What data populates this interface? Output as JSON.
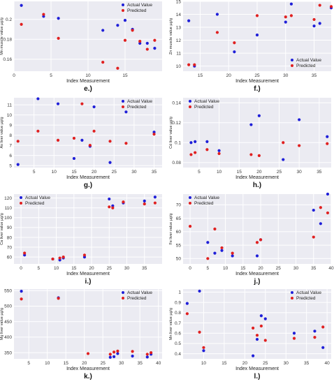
{
  "colors": {
    "actual": "#1f1fd8",
    "predicted": "#e02020",
    "plot_bg": "#ebebf2",
    "grid": "#ffffff"
  },
  "chart_data": [
    {
      "type": "scatter",
      "panel_label": "e.)",
      "xlabel": "Index Measurement",
      "ylabel": "Mn muscle value µg/g",
      "xlim": [
        0,
        20
      ],
      "ylim": [
        0.148,
        0.218
      ],
      "xticks": [
        0,
        5,
        10,
        15
      ],
      "yticks": [
        0.16,
        0.18,
        0.2
      ],
      "legend": "top-right",
      "series": [
        {
          "name": "Actual Value",
          "x": [
            1,
            4,
            6,
            12,
            14,
            15,
            16,
            17,
            18,
            19
          ],
          "y": [
            0.214,
            0.203,
            0.201,
            0.189,
            0.194,
            0.199,
            0.19,
            0.176,
            0.176,
            0.171
          ]
        },
        {
          "name": "Predicted",
          "x": [
            1,
            4,
            6,
            12,
            14,
            15,
            16,
            17,
            18,
            19
          ],
          "y": [
            0.195,
            0.205,
            0.181,
            0.157,
            0.151,
            0.179,
            0.189,
            0.178,
            0.17,
            0.179
          ]
        }
      ]
    },
    {
      "type": "scatter",
      "panel_label": "f.)",
      "xlabel": "Index Measurement",
      "ylabel": "Zn muscle value µg/g",
      "xlim": [
        12,
        38
      ],
      "ylim": [
        9.6,
        15
      ],
      "xticks": [
        15,
        20,
        25,
        30,
        35
      ],
      "yticks": [
        10,
        11,
        12,
        13,
        14,
        15
      ],
      "legend": "bottom-right",
      "series": [
        {
          "name": "Actual Value",
          "x": [
            13,
            14,
            18,
            21,
            25,
            30,
            31,
            35,
            36,
            38
          ],
          "y": [
            13.5,
            10.0,
            14.0,
            11.1,
            12.4,
            13.4,
            14.8,
            13.1,
            13.3,
            14.5
          ]
        },
        {
          "name": "Predicted",
          "x": [
            13,
            14,
            18,
            21,
            25,
            30,
            31,
            35,
            36,
            38
          ],
          "y": [
            10.1,
            10.1,
            12.6,
            11.8,
            13.9,
            13.8,
            13.9,
            13.6,
            14.7,
            14.6
          ]
        }
      ]
    },
    {
      "type": "scatter",
      "panel_label": "g.)",
      "xlabel": "Index Measurement",
      "ylabel": "As liver value µg/g",
      "xlim": [
        0,
        37
      ],
      "ylim": [
        4.8,
        11.7
      ],
      "xticks": [
        5,
        10,
        15,
        20,
        25,
        30,
        35
      ],
      "yticks": [
        5,
        6,
        7,
        8,
        9,
        10,
        11
      ],
      "legend": "top-right",
      "series": [
        {
          "name": "Actual Value",
          "x": [
            1,
            6,
            11,
            15,
            17,
            19,
            20,
            24,
            28,
            35
          ],
          "y": [
            5.1,
            11.6,
            11.1,
            5.7,
            7.5,
            6.9,
            10.8,
            5.3,
            10.3,
            8.3
          ]
        },
        {
          "name": "Predicted",
          "x": [
            1,
            6,
            11,
            15,
            17,
            19,
            20,
            24,
            28,
            35
          ],
          "y": [
            7.4,
            8.4,
            7.5,
            7.7,
            11.1,
            7.0,
            8.4,
            7.4,
            7.2,
            8.1
          ]
        }
      ]
    },
    {
      "type": "scatter",
      "panel_label": "h.)",
      "xlabel": "Index Measurement",
      "ylabel": "Cd liver value µg/g",
      "xlim": [
        1,
        38
      ],
      "ylim": [
        0.075,
        0.145
      ],
      "xticks": [
        5,
        10,
        15,
        20,
        25,
        30,
        35
      ],
      "yticks": [
        0.08,
        0.1,
        0.12,
        0.14
      ],
      "legend": "top-left",
      "series": [
        {
          "name": "Actual Value",
          "x": [
            3,
            4,
            7,
            10,
            18,
            20,
            26,
            30,
            37
          ],
          "y": [
            0.1,
            0.101,
            0.101,
            0.092,
            0.118,
            0.127,
            0.083,
            0.123,
            0.106
          ]
        },
        {
          "name": "Predicted",
          "x": [
            3,
            4,
            7,
            10,
            18,
            20,
            26,
            30,
            37
          ],
          "y": [
            0.088,
            0.09,
            0.093,
            0.089,
            0.088,
            0.087,
            0.1,
            0.097,
            0.099
          ]
        }
      ]
    },
    {
      "type": "scatter",
      "panel_label": "i.)",
      "xlabel": "Index Measurement",
      "ylabel": "Ca liver value µg/g",
      "xlim": [
        -2,
        40
      ],
      "ylim": [
        53,
        124
      ],
      "xticks": [
        0,
        5,
        10,
        15,
        20,
        25,
        30,
        35
      ],
      "yticks": [
        60,
        70,
        80,
        90,
        100,
        110,
        120
      ],
      "legend": "top-left",
      "series": [
        {
          "name": "Actual Value",
          "x": [
            1,
            9,
            11,
            12,
            18,
            25,
            26,
            29,
            35,
            38
          ],
          "y": [
            62,
            58,
            57,
            59,
            60,
            119,
            112,
            115,
            117,
            121
          ]
        },
        {
          "name": "Predicted",
          "x": [
            1,
            9,
            11,
            12,
            18,
            25,
            26,
            29,
            35,
            38
          ],
          "y": [
            64,
            58,
            59,
            60,
            62,
            111,
            110,
            116,
            114,
            115
          ]
        }
      ]
    },
    {
      "type": "scatter",
      "panel_label": "j.)",
      "xlabel": "Index Measurement",
      "ylabel": "Fe liver value µg/g",
      "xlim": [
        -2,
        40
      ],
      "ylim": [
        48,
        74
      ],
      "xticks": [
        0,
        5,
        10,
        15,
        20,
        25,
        30,
        35,
        40
      ],
      "yticks": [
        50,
        55,
        60,
        65,
        70
      ],
      "legend": "top-left",
      "series": [
        {
          "name": "Actual Value",
          "x": [
            5,
            7,
            9,
            12,
            19,
            20,
            35,
            37,
            39
          ],
          "y": [
            56,
            52,
            53,
            51,
            51,
            57,
            68,
            63,
            74
          ]
        },
        {
          "name": "Predicted",
          "x": [
            0,
            5,
            7,
            9,
            12,
            19,
            20,
            35,
            37,
            39
          ],
          "y": [
            62,
            50,
            61,
            54,
            52,
            56,
            57,
            58,
            69,
            67
          ]
        }
      ]
    },
    {
      "type": "scatter",
      "panel_label": "k.)",
      "xlabel": "Index Measurement",
      "ylabel": "Mg liver value µg/g",
      "xlim": [
        1,
        41
      ],
      "ylim": [
        330,
        555
      ],
      "xticks": [
        5,
        10,
        15,
        20,
        25,
        30,
        35,
        40
      ],
      "yticks": [
        350,
        400,
        450,
        500,
        550
      ],
      "legend": "top-right",
      "series": [
        {
          "name": "Actual Value",
          "x": [
            3,
            13,
            27,
            28,
            29,
            33,
            37,
            38
          ],
          "y": [
            548,
            527,
            335,
            337,
            347,
            339,
            336,
            345
          ]
        },
        {
          "name": "Predicted",
          "x": [
            3,
            13,
            21,
            27,
            28,
            29,
            33,
            37,
            38
          ],
          "y": [
            523,
            525,
            347,
            345,
            352,
            355,
            354,
            345,
            350
          ]
        }
      ]
    },
    {
      "type": "scatter",
      "panel_label": "l.)",
      "xlabel": "Index Measurement",
      "ylabel": "Mn liver value µg/g",
      "xlim": [
        5,
        41
      ],
      "ylim": [
        0.35,
        1.03
      ],
      "xticks": [
        10,
        15,
        20,
        25,
        30,
        35,
        40
      ],
      "yticks": [
        0.4,
        0.5,
        0.6,
        0.7,
        0.8,
        0.9,
        1.0
      ],
      "legend": "top-right",
      "series": [
        {
          "name": "Actual Value",
          "x": [
            6,
            9,
            10,
            22,
            23,
            24,
            25,
            32,
            37,
            39
          ],
          "y": [
            0.89,
            1.01,
            0.43,
            0.38,
            0.54,
            0.77,
            0.74,
            0.6,
            0.62,
            0.46
          ]
        },
        {
          "name": "Predicted",
          "x": [
            6,
            9,
            10,
            22,
            23,
            24,
            25,
            32,
            37,
            39
          ],
          "y": [
            0.79,
            0.61,
            0.46,
            0.65,
            0.58,
            0.67,
            0.53,
            0.55,
            0.56,
            0.66
          ]
        }
      ]
    }
  ]
}
